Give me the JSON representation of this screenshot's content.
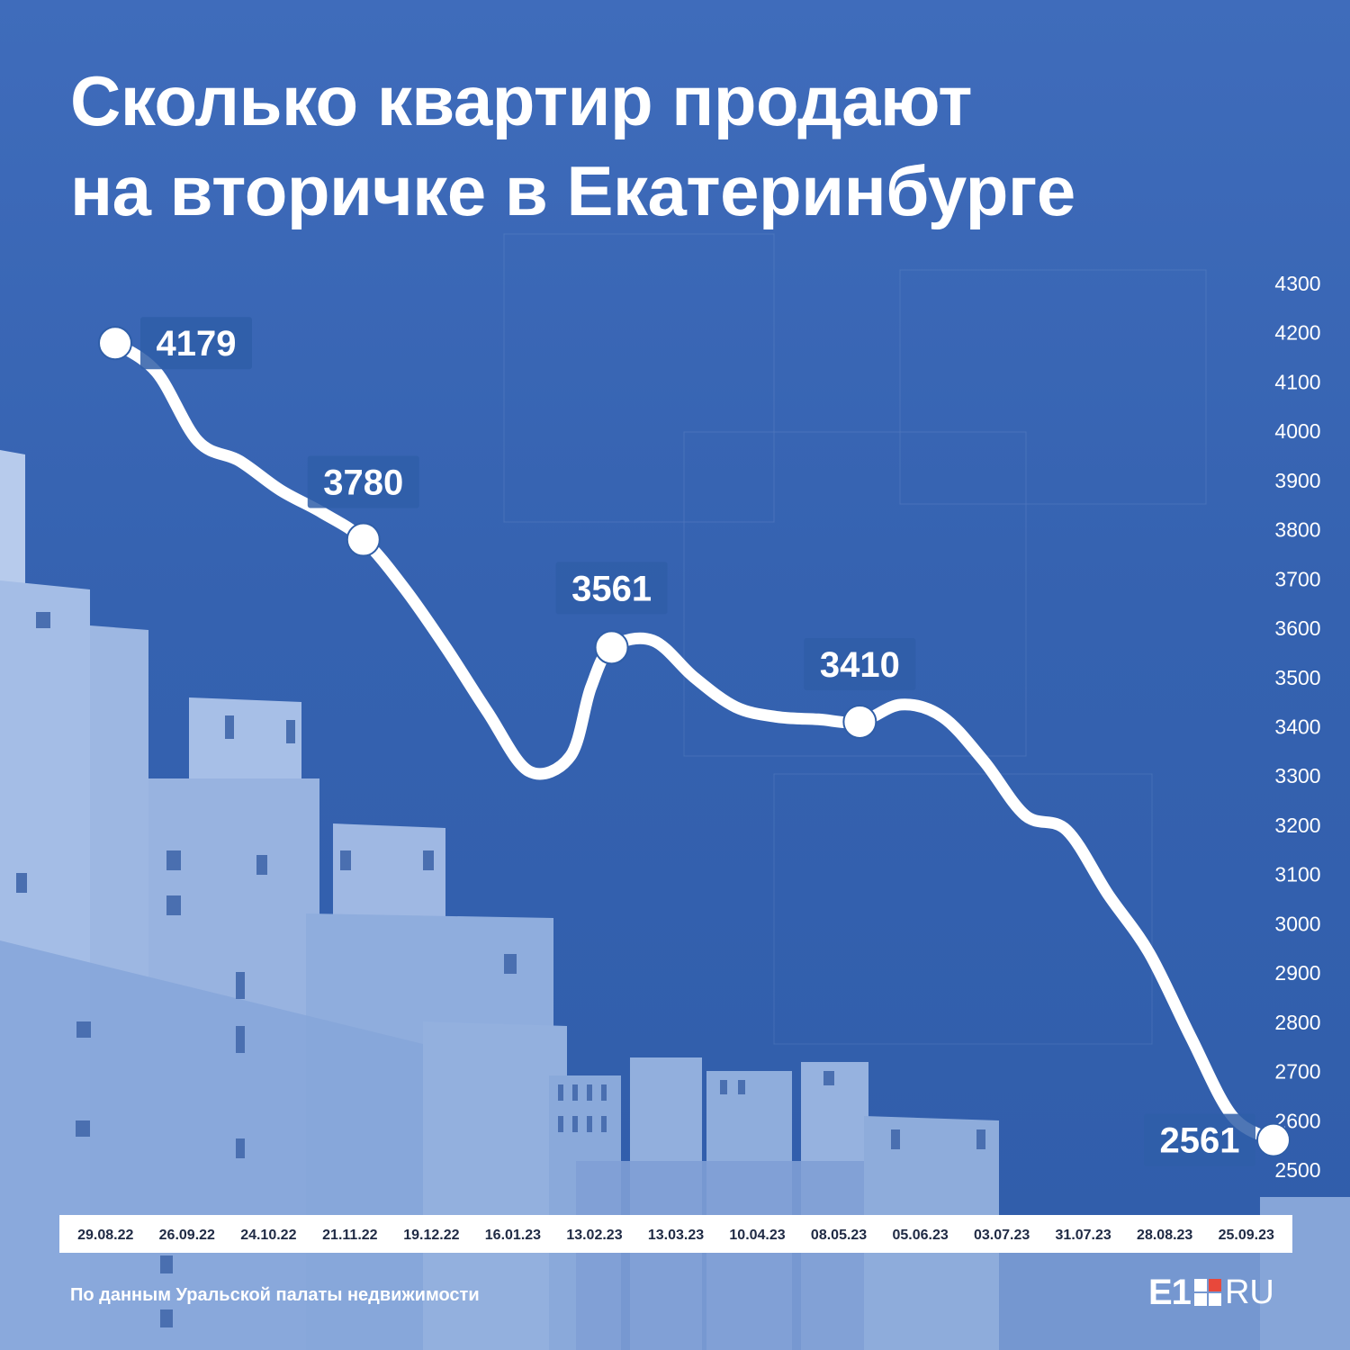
{
  "title_lines": [
    "Сколько квартир продают",
    "на вторичке в Екатеринбурге"
  ],
  "source": "По данным Уральской палаты недвижимости",
  "logo": {
    "left": "E1",
    "right": "RU"
  },
  "colors": {
    "background": "#3a66b6",
    "line": "#ffffff",
    "label_box": "#2f5ea8",
    "axis_strip": "#ffffff",
    "brand_red": "#e8483b"
  },
  "chart_data": {
    "type": "line",
    "title": "Сколько квартир продают на вторичке в Екатеринбурге",
    "xlabel": "",
    "ylabel": "",
    "ylim": [
      2500,
      4300
    ],
    "y_ticks": [
      4300,
      4200,
      4100,
      4000,
      3900,
      3800,
      3700,
      3600,
      3500,
      3400,
      3300,
      3200,
      3100,
      3000,
      2900,
      2800,
      2700,
      2600,
      2500
    ],
    "x_tick_labels": [
      "29.08.22",
      "26.09.22",
      "24.10.22",
      "21.11.22",
      "19.12.22",
      "16.01.23",
      "13.02.23",
      "13.03.23",
      "10.04.23",
      "08.05.23",
      "05.06.23",
      "03.07.23",
      "31.07.23",
      "28.08.23",
      "25.09.23"
    ],
    "grid": false,
    "legend": "none",
    "series": [
      {
        "values": [
          {
            "x": "29.08.22",
            "y": 4179
          },
          {
            "x": "12.09.22",
            "y": 4120
          },
          {
            "x": "26.09.22",
            "y": 3980
          },
          {
            "x": "10.10.22",
            "y": 3940
          },
          {
            "x": "24.10.22",
            "y": 3880
          },
          {
            "x": "07.11.22",
            "y": 3835
          },
          {
            "x": "21.11.22",
            "y": 3780
          },
          {
            "x": "05.12.22",
            "y": 3680
          },
          {
            "x": "19.12.22",
            "y": 3560
          },
          {
            "x": "02.01.23",
            "y": 3430
          },
          {
            "x": "16.01.23",
            "y": 3310
          },
          {
            "x": "30.01.23",
            "y": 3340
          },
          {
            "x": "06.02.23",
            "y": 3480
          },
          {
            "x": "13.02.23",
            "y": 3561
          },
          {
            "x": "27.02.23",
            "y": 3575
          },
          {
            "x": "13.03.23",
            "y": 3500
          },
          {
            "x": "27.03.23",
            "y": 3440
          },
          {
            "x": "10.04.23",
            "y": 3420
          },
          {
            "x": "24.04.23",
            "y": 3415
          },
          {
            "x": "08.05.23",
            "y": 3410
          },
          {
            "x": "22.05.23",
            "y": 3445
          },
          {
            "x": "05.06.23",
            "y": 3420
          },
          {
            "x": "19.06.23",
            "y": 3330
          },
          {
            "x": "03.07.23",
            "y": 3220
          },
          {
            "x": "17.07.23",
            "y": 3190
          },
          {
            "x": "31.07.23",
            "y": 3060
          },
          {
            "x": "14.08.23",
            "y": 2940
          },
          {
            "x": "28.08.23",
            "y": 2770
          },
          {
            "x": "11.09.23",
            "y": 2610
          },
          {
            "x": "25.09.23",
            "y": 2561
          }
        ]
      }
    ],
    "annotations": [
      {
        "x": "29.08.22",
        "y": 4179,
        "text": "4179"
      },
      {
        "x": "21.11.22",
        "y": 3780,
        "text": "3780"
      },
      {
        "x": "13.02.23",
        "y": 3561,
        "text": "3561"
      },
      {
        "x": "08.05.23",
        "y": 3410,
        "text": "3410"
      },
      {
        "x": "25.09.23",
        "y": 2561,
        "text": "2561"
      }
    ]
  }
}
